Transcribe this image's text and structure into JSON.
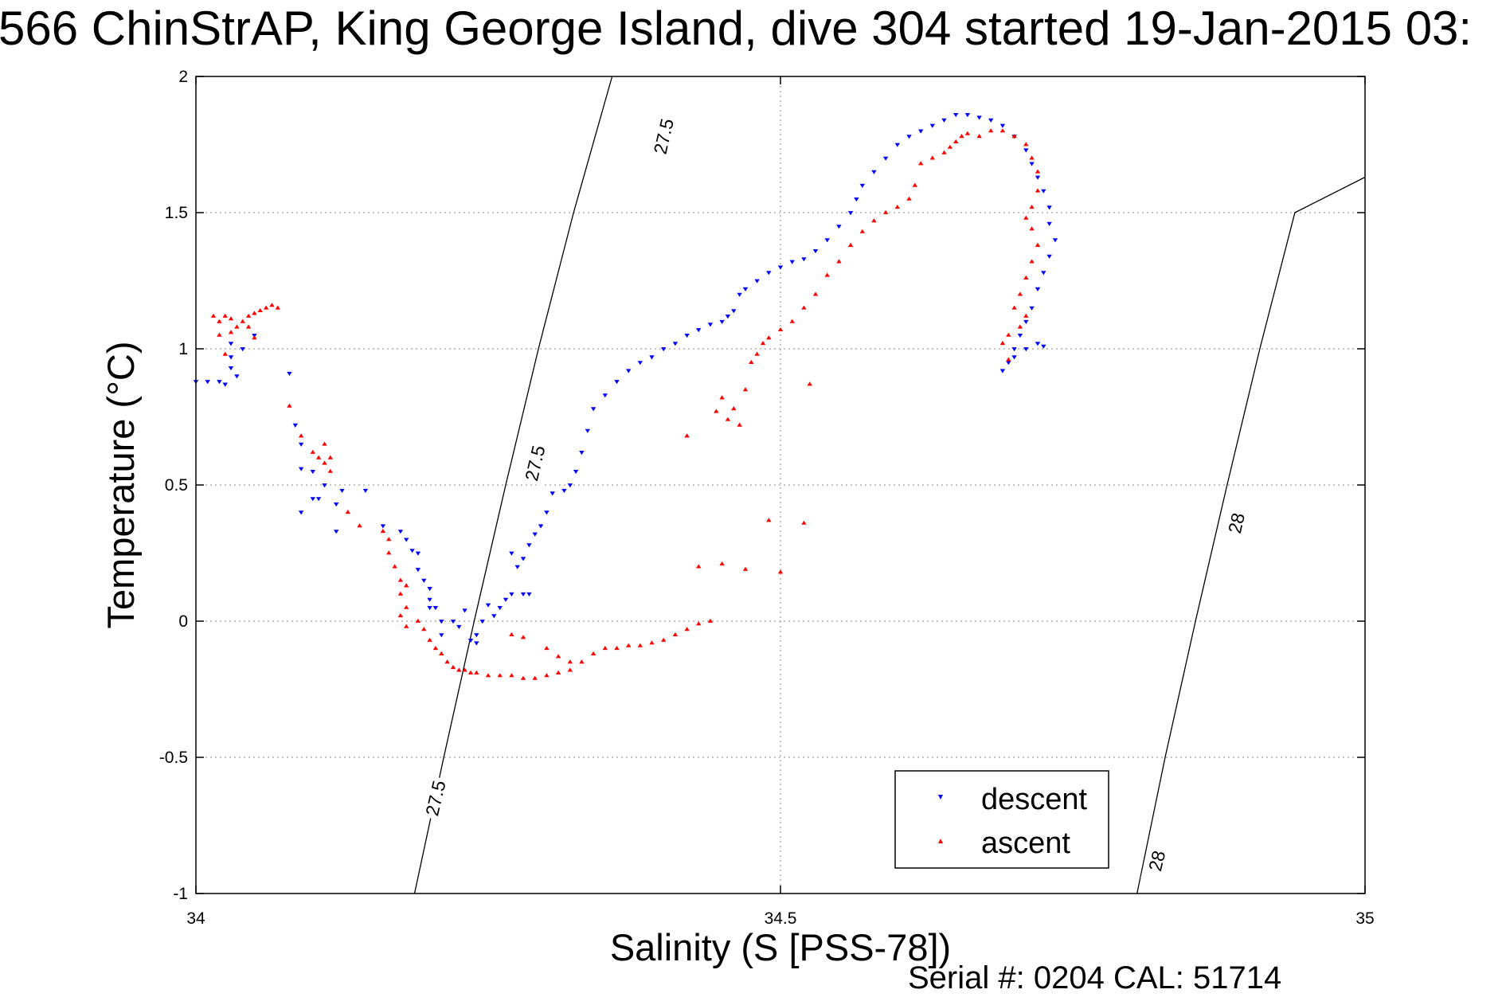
{
  "chart_data": {
    "type": "scatter",
    "title": "566 ChinStrAP, King George Island, dive 304 started 19-Jan-2015 03:",
    "xlabel": "Salinity (S [PSS-78])",
    "ylabel": "Temperature (°C)",
    "xlim": [
      34,
      35
    ],
    "ylim": [
      -1,
      2
    ],
    "x_ticks": [
      34,
      34.5,
      35
    ],
    "y_ticks": [
      -1,
      -0.5,
      0,
      0.5,
      1,
      1.5,
      2
    ],
    "x_tick_labels": [
      "34",
      "34.5",
      "35"
    ],
    "y_tick_labels": [
      "-1",
      "-0.5",
      "0",
      "0.5",
      "1",
      "1.5",
      "2"
    ],
    "grid": true,
    "legend_position": "bottom-right",
    "footer": "Serial #: 0204  CAL: 51714",
    "isopycnals": [
      {
        "label": "27.5",
        "points": [
          [
            34.187,
            -1.0
          ],
          [
            34.212,
            -0.5
          ],
          [
            34.238,
            0.0
          ],
          [
            34.265,
            0.5
          ],
          [
            34.293,
            1.0
          ],
          [
            34.323,
            1.5
          ],
          [
            34.356,
            2.0
          ]
        ],
        "label_positions": [
          [
            34.205,
            -0.65
          ],
          [
            34.29,
            0.58
          ],
          [
            34.4,
            1.78
          ]
        ]
      },
      {
        "label": "28",
        "points": [
          [
            34.805,
            -1.0
          ],
          [
            34.829,
            -0.5
          ],
          [
            34.855,
            0.0
          ],
          [
            34.882,
            0.5
          ],
          [
            34.91,
            1.0
          ],
          [
            34.94,
            1.5
          ],
          [
            35.0,
            1.63
          ]
        ],
        "label_positions": [
          [
            34.822,
            -0.88
          ],
          [
            34.89,
            0.36
          ]
        ]
      }
    ],
    "series": [
      {
        "name": "descent",
        "color": "#0000ff",
        "marker": "triangle-down",
        "points": [
          [
            34.0,
            0.88
          ],
          [
            34.01,
            0.88
          ],
          [
            34.02,
            0.88
          ],
          [
            34.025,
            0.87
          ],
          [
            34.03,
            0.93
          ],
          [
            34.03,
            0.97
          ],
          [
            34.03,
            1.02
          ],
          [
            34.035,
            0.9
          ],
          [
            34.04,
            1.0
          ],
          [
            34.05,
            1.05
          ],
          [
            34.08,
            0.91
          ],
          [
            34.085,
            0.72
          ],
          [
            34.09,
            0.65
          ],
          [
            34.09,
            0.56
          ],
          [
            34.1,
            0.55
          ],
          [
            34.105,
            0.45
          ],
          [
            34.09,
            0.4
          ],
          [
            34.1,
            0.45
          ],
          [
            34.11,
            0.5
          ],
          [
            34.12,
            0.43
          ],
          [
            34.125,
            0.48
          ],
          [
            34.12,
            0.33
          ],
          [
            34.145,
            0.48
          ],
          [
            34.16,
            0.35
          ],
          [
            34.175,
            0.33
          ],
          [
            34.18,
            0.3
          ],
          [
            34.185,
            0.26
          ],
          [
            34.19,
            0.25
          ],
          [
            34.19,
            0.19
          ],
          [
            34.195,
            0.15
          ],
          [
            34.2,
            0.12
          ],
          [
            34.2,
            0.08
          ],
          [
            34.205,
            0.05
          ],
          [
            34.21,
            0.0
          ],
          [
            34.2,
            0.05
          ],
          [
            34.21,
            -0.05
          ],
          [
            34.22,
            0.0
          ],
          [
            34.225,
            -0.02
          ],
          [
            34.23,
            0.04
          ],
          [
            34.235,
            -0.07
          ],
          [
            34.24,
            -0.08
          ],
          [
            34.24,
            -0.05
          ],
          [
            34.245,
            0.0
          ],
          [
            34.25,
            0.06
          ],
          [
            34.255,
            0.02
          ],
          [
            34.26,
            0.05
          ],
          [
            34.265,
            0.08
          ],
          [
            34.27,
            0.1
          ],
          [
            34.28,
            0.1
          ],
          [
            34.285,
            0.1
          ],
          [
            34.27,
            0.25
          ],
          [
            34.275,
            0.2
          ],
          [
            34.28,
            0.23
          ],
          [
            34.285,
            0.28
          ],
          [
            34.29,
            0.32
          ],
          [
            34.295,
            0.35
          ],
          [
            34.3,
            0.4
          ],
          [
            34.305,
            0.47
          ],
          [
            34.315,
            0.48
          ],
          [
            34.32,
            0.5
          ],
          [
            34.325,
            0.55
          ],
          [
            34.33,
            0.62
          ],
          [
            34.335,
            0.7
          ],
          [
            34.34,
            0.78
          ],
          [
            34.35,
            0.83
          ],
          [
            34.36,
            0.88
          ],
          [
            34.37,
            0.92
          ],
          [
            34.38,
            0.95
          ],
          [
            34.39,
            0.97
          ],
          [
            34.4,
            1.0
          ],
          [
            34.41,
            1.02
          ],
          [
            34.42,
            1.05
          ],
          [
            34.43,
            1.07
          ],
          [
            34.44,
            1.09
          ],
          [
            34.45,
            1.1
          ],
          [
            34.455,
            1.12
          ],
          [
            34.46,
            1.14
          ],
          [
            34.465,
            1.2
          ],
          [
            34.47,
            1.22
          ],
          [
            34.48,
            1.25
          ],
          [
            34.49,
            1.28
          ],
          [
            34.5,
            1.3
          ],
          [
            34.51,
            1.32
          ],
          [
            34.52,
            1.33
          ],
          [
            34.53,
            1.36
          ],
          [
            34.54,
            1.4
          ],
          [
            34.55,
            1.45
          ],
          [
            34.56,
            1.5
          ],
          [
            34.565,
            1.55
          ],
          [
            34.57,
            1.6
          ],
          [
            34.58,
            1.65
          ],
          [
            34.59,
            1.7
          ],
          [
            34.6,
            1.75
          ],
          [
            34.61,
            1.78
          ],
          [
            34.62,
            1.8
          ],
          [
            34.63,
            1.82
          ],
          [
            34.64,
            1.84
          ],
          [
            34.65,
            1.86
          ],
          [
            34.66,
            1.86
          ],
          [
            34.67,
            1.85
          ],
          [
            34.68,
            1.84
          ],
          [
            34.69,
            1.82
          ],
          [
            34.7,
            1.78
          ],
          [
            34.71,
            1.73
          ],
          [
            34.715,
            1.68
          ],
          [
            34.72,
            1.63
          ],
          [
            34.725,
            1.58
          ],
          [
            34.73,
            1.52
          ],
          [
            34.73,
            1.46
          ],
          [
            34.735,
            1.4
          ],
          [
            34.73,
            1.34
          ],
          [
            34.725,
            1.28
          ],
          [
            34.72,
            1.22
          ],
          [
            34.715,
            1.15
          ],
          [
            34.71,
            1.1
          ],
          [
            34.705,
            1.05
          ],
          [
            34.7,
            1.0
          ],
          [
            34.695,
            0.95
          ],
          [
            34.69,
            0.92
          ],
          [
            34.7,
            0.97
          ],
          [
            34.71,
            1.0
          ],
          [
            34.72,
            1.02
          ],
          [
            34.725,
            1.01
          ]
        ]
      },
      {
        "name": "ascent",
        "color": "#ff0000",
        "marker": "triangle-up",
        "points": [
          [
            34.015,
            1.12
          ],
          [
            34.02,
            1.1
          ],
          [
            34.025,
            1.12
          ],
          [
            34.03,
            1.11
          ],
          [
            34.035,
            1.08
          ],
          [
            34.04,
            1.1
          ],
          [
            34.045,
            1.12
          ],
          [
            34.05,
            1.13
          ],
          [
            34.055,
            1.14
          ],
          [
            34.06,
            1.15
          ],
          [
            34.065,
            1.16
          ],
          [
            34.07,
            1.15
          ],
          [
            34.02,
            1.05
          ],
          [
            34.03,
            1.06
          ],
          [
            34.045,
            1.08
          ],
          [
            34.05,
            1.04
          ],
          [
            34.025,
            0.98
          ],
          [
            34.08,
            0.79
          ],
          [
            34.09,
            0.68
          ],
          [
            34.1,
            0.62
          ],
          [
            34.105,
            0.6
          ],
          [
            34.11,
            0.58
          ],
          [
            34.11,
            0.65
          ],
          [
            34.115,
            0.6
          ],
          [
            34.115,
            0.55
          ],
          [
            34.13,
            0.4
          ],
          [
            34.14,
            0.35
          ],
          [
            34.16,
            0.33
          ],
          [
            34.165,
            0.3
          ],
          [
            34.165,
            0.25
          ],
          [
            34.17,
            0.2
          ],
          [
            34.175,
            0.15
          ],
          [
            34.18,
            0.13
          ],
          [
            34.175,
            0.1
          ],
          [
            34.18,
            0.05
          ],
          [
            34.175,
            0.02
          ],
          [
            34.18,
            -0.02
          ],
          [
            34.19,
            0.0
          ],
          [
            34.195,
            -0.03
          ],
          [
            34.2,
            -0.07
          ],
          [
            34.205,
            -0.1
          ],
          [
            34.21,
            -0.12
          ],
          [
            34.215,
            -0.15
          ],
          [
            34.22,
            -0.17
          ],
          [
            34.225,
            -0.18
          ],
          [
            34.23,
            -0.18
          ],
          [
            34.235,
            -0.19
          ],
          [
            34.24,
            -0.19
          ],
          [
            34.25,
            -0.2
          ],
          [
            34.26,
            -0.2
          ],
          [
            34.27,
            -0.2
          ],
          [
            34.28,
            -0.21
          ],
          [
            34.29,
            -0.21
          ],
          [
            34.3,
            -0.2
          ],
          [
            34.31,
            -0.19
          ],
          [
            34.32,
            -0.18
          ],
          [
            34.33,
            -0.15
          ],
          [
            34.34,
            -0.12
          ],
          [
            34.35,
            -0.1
          ],
          [
            34.36,
            -0.1
          ],
          [
            34.37,
            -0.09
          ],
          [
            34.38,
            -0.09
          ],
          [
            34.39,
            -0.08
          ],
          [
            34.4,
            -0.07
          ],
          [
            34.41,
            -0.05
          ],
          [
            34.42,
            -0.03
          ],
          [
            34.43,
            -0.01
          ],
          [
            34.44,
            0.0
          ],
          [
            34.27,
            -0.05
          ],
          [
            34.28,
            -0.06
          ],
          [
            34.3,
            -0.1
          ],
          [
            34.31,
            -0.13
          ],
          [
            34.32,
            -0.15
          ],
          [
            34.43,
            0.2
          ],
          [
            34.45,
            0.21
          ],
          [
            34.47,
            0.19
          ],
          [
            34.49,
            0.37
          ],
          [
            34.5,
            0.18
          ],
          [
            34.52,
            0.36
          ],
          [
            34.42,
            0.68
          ],
          [
            34.445,
            0.77
          ],
          [
            34.45,
            0.82
          ],
          [
            34.455,
            0.74
          ],
          [
            34.46,
            0.78
          ],
          [
            34.465,
            0.72
          ],
          [
            34.47,
            0.85
          ],
          [
            34.475,
            0.95
          ],
          [
            34.48,
            0.98
          ],
          [
            34.485,
            1.02
          ],
          [
            34.49,
            1.04
          ],
          [
            34.5,
            1.07
          ],
          [
            34.51,
            1.1
          ],
          [
            34.52,
            1.15
          ],
          [
            34.525,
            0.87
          ],
          [
            34.53,
            1.2
          ],
          [
            34.54,
            1.27
          ],
          [
            34.55,
            1.32
          ],
          [
            34.56,
            1.38
          ],
          [
            34.57,
            1.43
          ],
          [
            34.58,
            1.47
          ],
          [
            34.59,
            1.5
          ],
          [
            34.6,
            1.52
          ],
          [
            34.61,
            1.55
          ],
          [
            34.615,
            1.6
          ],
          [
            34.62,
            1.68
          ],
          [
            34.63,
            1.7
          ],
          [
            34.64,
            1.72
          ],
          [
            34.645,
            1.74
          ],
          [
            34.65,
            1.76
          ],
          [
            34.655,
            1.78
          ],
          [
            34.66,
            1.79
          ],
          [
            34.67,
            1.78
          ],
          [
            34.68,
            1.8
          ],
          [
            34.69,
            1.8
          ],
          [
            34.7,
            1.78
          ],
          [
            34.71,
            1.75
          ],
          [
            34.715,
            1.7
          ],
          [
            34.72,
            1.65
          ],
          [
            34.72,
            1.58
          ],
          [
            34.715,
            1.52
          ],
          [
            34.71,
            1.48
          ],
          [
            34.715,
            1.44
          ],
          [
            34.72,
            1.38
          ],
          [
            34.715,
            1.32
          ],
          [
            34.71,
            1.26
          ],
          [
            34.705,
            1.2
          ],
          [
            34.7,
            1.15
          ],
          [
            34.71,
            1.12
          ],
          [
            34.705,
            1.08
          ],
          [
            34.695,
            1.05
          ],
          [
            34.69,
            1.02
          ],
          [
            34.695,
            0.96
          ]
        ]
      }
    ]
  }
}
